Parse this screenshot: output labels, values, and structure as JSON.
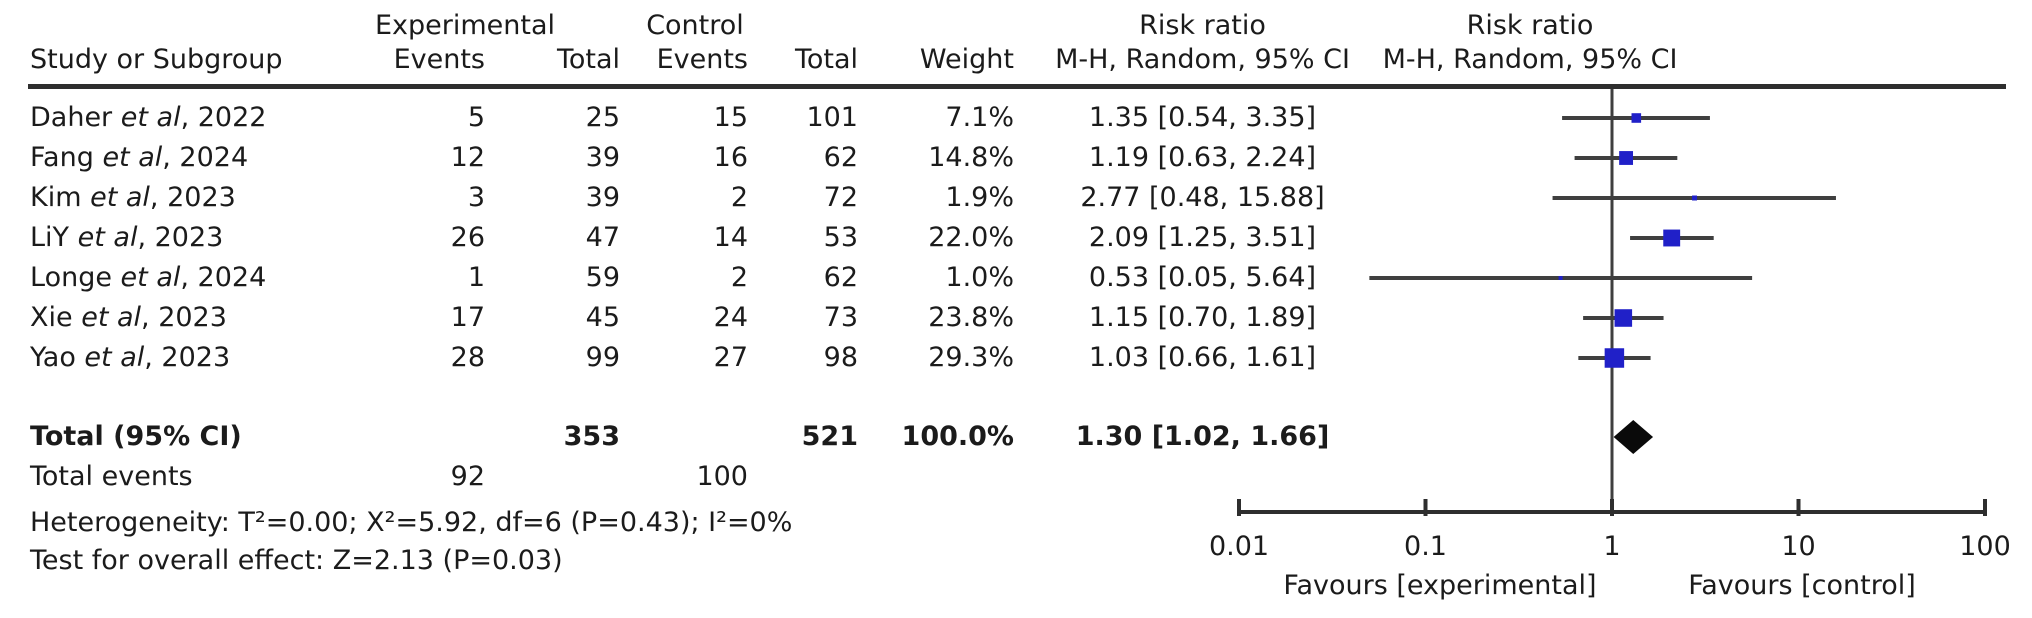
{
  "table": {
    "group_headers": {
      "experimental": "Experimental",
      "control": "Control",
      "risk_ratio_left": "Risk ratio",
      "risk_ratio_right": "Risk ratio"
    },
    "col_headers": {
      "study": "Study or Subgroup",
      "exp_events": "Events",
      "exp_total": "Total",
      "ctl_events": "Events",
      "ctl_total": "Total",
      "weight": "Weight",
      "mh_left": "M-H, Random, 95% CI",
      "mh_right": "M-H, Random, 95% CI"
    },
    "rows": [
      {
        "name": "Daher ",
        "etal": "et al",
        "year": ", 2022",
        "e1": "5",
        "t1": "25",
        "e2": "15",
        "t2": "101",
        "weight": "7.1%",
        "ci": "1.35 [0.54, 3.35]"
      },
      {
        "name": "Fang ",
        "etal": "et al",
        "year": ", 2024",
        "e1": "12",
        "t1": "39",
        "e2": "16",
        "t2": "62",
        "weight": "14.8%",
        "ci": "1.19 [0.63, 2.24]"
      },
      {
        "name": "Kim ",
        "etal": "et al",
        "year": ", 2023",
        "e1": "3",
        "t1": "39",
        "e2": "2",
        "t2": "72",
        "weight": "1.9%",
        "ci": "2.77 [0.48, 15.88]"
      },
      {
        "name": "LiY ",
        "etal": "et al",
        "year": ", 2023",
        "e1": "26",
        "t1": "47",
        "e2": "14",
        "t2": "53",
        "weight": "22.0%",
        "ci": "2.09 [1.25, 3.51]"
      },
      {
        "name": "Longe ",
        "etal": "et al",
        "year": ", 2024",
        "e1": "1",
        "t1": "59",
        "e2": "2",
        "t2": "62",
        "weight": "1.0%",
        "ci": "0.53 [0.05, 5.64]"
      },
      {
        "name": "Xie ",
        "etal": "et al",
        "year": ", 2023",
        "e1": "17",
        "t1": "45",
        "e2": "24",
        "t2": "73",
        "weight": "23.8%",
        "ci": "1.15 [0.70, 1.89]"
      },
      {
        "name": "Yao ",
        "etal": "et al",
        "year": ", 2023",
        "e1": "28",
        "t1": "99",
        "e2": "27",
        "t2": "98",
        "weight": "29.3%",
        "ci": "1.03 [0.66, 1.61]"
      }
    ],
    "total_row": {
      "label": "Total (95% CI)",
      "t1": "353",
      "t2": "521",
      "weight": "100.0%",
      "ci": "1.30 [1.02, 1.66]"
    },
    "total_events": {
      "label": "Total events",
      "e1": "92",
      "e2": "100"
    },
    "heterogeneity": "Heterogeneity: Τ²=0.00; Χ²=5.92, df=6 (P=0.43); I²=0%",
    "overall_effect": "Test for overall effect: Z=2.13 (P=0.03)"
  },
  "chart_data": {
    "type": "forest",
    "effect_measure": "Risk ratio (M-H, Random, 95% CI)",
    "x_axis": {
      "scale": "log",
      "ticks": [
        0.01,
        0.1,
        1,
        10,
        100
      ],
      "tick_labels": [
        "0.01",
        "0.1",
        "1",
        "10",
        "100"
      ],
      "reference_line": 1
    },
    "studies": [
      {
        "label": "Daher et al, 2022",
        "rr": 1.35,
        "ci_low": 0.54,
        "ci_high": 3.35,
        "weight_pct": 7.1
      },
      {
        "label": "Fang et al, 2024",
        "rr": 1.19,
        "ci_low": 0.63,
        "ci_high": 2.24,
        "weight_pct": 14.8
      },
      {
        "label": "Kim et al, 2023",
        "rr": 2.77,
        "ci_low": 0.48,
        "ci_high": 15.88,
        "weight_pct": 1.9
      },
      {
        "label": "LiY et al, 2023",
        "rr": 2.09,
        "ci_low": 1.25,
        "ci_high": 3.51,
        "weight_pct": 22.0
      },
      {
        "label": "Longe et al, 2024",
        "rr": 0.53,
        "ci_low": 0.05,
        "ci_high": 5.64,
        "weight_pct": 1.0
      },
      {
        "label": "Xie et al, 2023",
        "rr": 1.15,
        "ci_low": 0.7,
        "ci_high": 1.89,
        "weight_pct": 23.8
      },
      {
        "label": "Yao et al, 2023",
        "rr": 1.03,
        "ci_low": 0.66,
        "ci_high": 1.61,
        "weight_pct": 29.3
      }
    ],
    "total": {
      "label": "Total (95% CI)",
      "rr": 1.3,
      "ci_low": 1.02,
      "ci_high": 1.66,
      "weight_pct": 100.0
    },
    "favours": {
      "left": "Favours [experimental]",
      "right": "Favours [control]"
    },
    "colors": {
      "marker": "#2020c8",
      "diamond": "#0a0a0a",
      "line": "#3f3f3f",
      "axis": "#2e2e2e",
      "text": "#1b1b1b"
    }
  }
}
